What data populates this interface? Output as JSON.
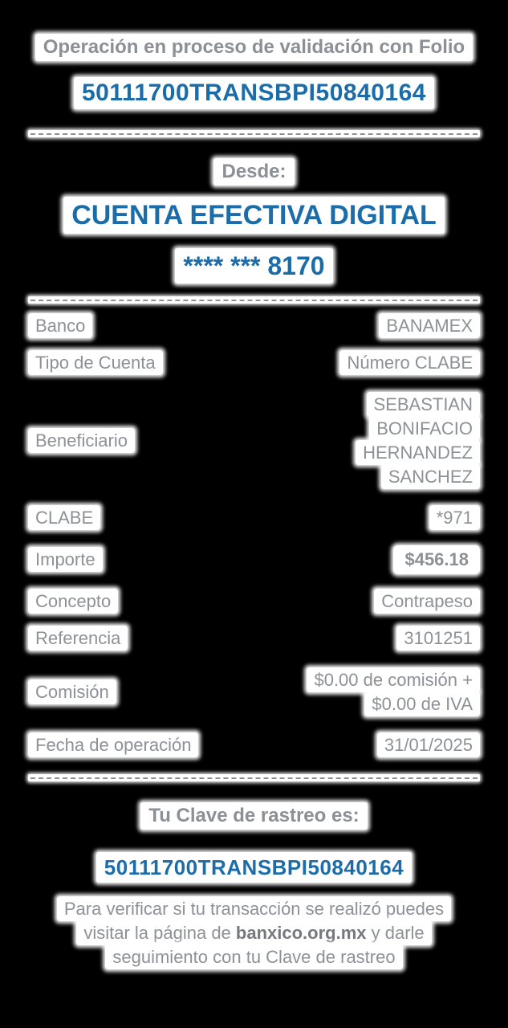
{
  "header": {
    "title": "Operación en proceso de validación con Folio",
    "folio": "50111700TRANSBPI50840164"
  },
  "from": {
    "label": "Desde:",
    "account_name": "CUENTA EFECTIVA DIGITAL",
    "account_mask": "**** *** 8170"
  },
  "details": [
    {
      "label": "Banco",
      "value": "BANAMEX"
    },
    {
      "label": "Tipo de Cuenta",
      "value": "Número CLABE"
    },
    {
      "label": "Beneficiario",
      "lines": [
        "SEBASTIAN",
        "BONIFACIO",
        "HERNANDEZ",
        "SANCHEZ"
      ]
    },
    {
      "label": "CLABE",
      "value": "*971"
    },
    {
      "label": "Importe",
      "value": "$456.18"
    },
    {
      "label": "Concepto",
      "value": "Contrapeso"
    },
    {
      "label": "Referencia",
      "value": "3101251"
    },
    {
      "label": "Comisión",
      "lines": [
        "$0.00 de comisión +",
        "$0.00 de IVA"
      ]
    },
    {
      "label": "Fecha de operación",
      "value": "31/01/2025"
    }
  ],
  "footer": {
    "tracking_label": "Tu Clave de rastreo es:",
    "tracking_key": "50111700TRANSBPI50840164",
    "note_line1": "Para verificar si tu transacción se realizó puedes",
    "note_line2_prefix": "visitar la página de ",
    "note_link": "banxico.org.mx",
    "note_line2_suffix": " y darle",
    "note_line3": "seguimiento con tu Clave de rastreo"
  },
  "colors": {
    "accent_blue": "#1b6da9",
    "text_gray": "#8d9196",
    "patch_white": "#ffffff"
  }
}
